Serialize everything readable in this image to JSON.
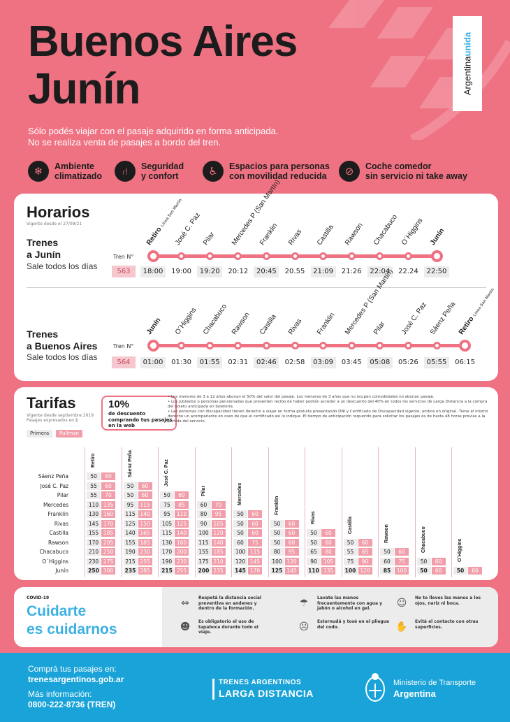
{
  "header": {
    "title_line1": "Buenos Aires",
    "title_line2": "Junín",
    "brand_part1": "Argentina",
    "brand_part2": "unida",
    "notice_line1": "Sólo podés viajar con el pasaje adquirido en forma anticipada.",
    "notice_line2": "No se realiza venta de pasajes a bordo del tren."
  },
  "features": [
    {
      "icon": "snowflake-icon",
      "label": "Ambiente\nclimatizado"
    },
    {
      "icon": "seat-icon",
      "label": "Seguridad\ny confort"
    },
    {
      "icon": "wheelchair-icon",
      "label": "Espacios para personas\ncon movilidad reducida"
    },
    {
      "icon": "no-food-icon",
      "label": "Coche comedor\nsin servicio ni take away"
    }
  ],
  "horarios": {
    "title": "Horarios",
    "vigencia": "Vigente desde el 27/09/21",
    "tren_label": "Tren N°",
    "route1": {
      "title_line1": "Trenes",
      "title_line2": "a Junín",
      "subtitle": "Sale todos los días",
      "train_number": "563",
      "stations": [
        "Retiro",
        "José C. Paz",
        "Pilar",
        "Mercedes P (San Martín)",
        "Franklin",
        "Rivas",
        "Castilla",
        "Rawson",
        "Chacabuco",
        "O´Higgins",
        "Junín"
      ],
      "station_sub": "Línea San Martín",
      "times": [
        "18:00",
        "19:00",
        "19:20",
        "20:12",
        "20:45",
        "20.55",
        "21:09",
        "21:26",
        "22:04",
        "22.24",
        "22:50"
      ]
    },
    "route2": {
      "title_line1": "Trenes",
      "title_line2": "a Buenos Aires",
      "subtitle": "Sale todos los días",
      "train_number": "564",
      "stations": [
        "Junín",
        "O´Higgins",
        "Chacabuco",
        "Rawson",
        "Castilla",
        "Rivas",
        "Franklin",
        "Mercedes P (San Martín)",
        "Pilar",
        "José C. Paz",
        "Sáenz Peña",
        "Retiro"
      ],
      "station_sub": "Línea San Martín",
      "times": [
        "01:00",
        "01:30",
        "01:55",
        "02:31",
        "02:46",
        "02:58",
        "03:09",
        "03:45",
        "05:08",
        "05:26",
        "05:55",
        "06:15"
      ]
    }
  },
  "tarifas": {
    "title": "Tarifas",
    "vigencia_line1": "Vigente desde septiembre 2019",
    "vigencia_line2": "Pasajes expresados en $",
    "legend_primera": "Primera",
    "legend_pullman": "Pullman",
    "promo_big": "10%",
    "promo_small": "de descuento comprando tus pasajes en la web",
    "notes": [
      "• Los menores de 3 a 12 años abonan el 50% del valor del pasaje. Los menores de 3 años que no ocupen comodidades no abonan pasaje.",
      "• Los jubilados o personas pensionadas que presenten recibo de haber podrán acceder a un descuento del 40% en todos los servicios de Larga Distancia a la compra del boleto anticipada en boletería.",
      "• Las personas con discapacidad tienen derecho a viajar en forma gratuita presentando DNI y Certificado de Discapacidad vigente, ambos en original. Tiene el mismo derecho un acompañante en caso de que el certificado así lo indique. El tiempo de anticipación requerido para solicitar los pasajes es de hasta 48 horas previas a la partida del servicio."
    ],
    "columns": [
      "Retiro",
      "Sáenz Peña",
      "José C. Paz",
      "Pilar",
      "Mercedes",
      "Franklin",
      "Rivas",
      "Castilla",
      "Rawson",
      "Chacabuco",
      "O´Higgins"
    ],
    "rows": [
      {
        "label": "Sáenz Peña",
        "cells": [
          [
            "50",
            "60"
          ]
        ]
      },
      {
        "label": "José C. Paz",
        "cells": [
          [
            "55",
            "60"
          ],
          [
            "50",
            "60"
          ]
        ]
      },
      {
        "label": "Pilar",
        "cells": [
          [
            "55",
            "70"
          ],
          [
            "50",
            "60"
          ],
          [
            "50",
            "60"
          ]
        ]
      },
      {
        "label": "Mercedes",
        "cells": [
          [
            "110",
            "135"
          ],
          [
            "95",
            "115"
          ],
          [
            "75",
            "85"
          ],
          [
            "60",
            "70"
          ]
        ]
      },
      {
        "label": "Franklin",
        "cells": [
          [
            "130",
            "160"
          ],
          [
            "115",
            "140"
          ],
          [
            "95",
            "110"
          ],
          [
            "80",
            "95"
          ],
          [
            "50",
            "60"
          ]
        ]
      },
      {
        "label": "Rivas",
        "cells": [
          [
            "145",
            "170"
          ],
          [
            "125",
            "150"
          ],
          [
            "105",
            "125"
          ],
          [
            "90",
            "105"
          ],
          [
            "50",
            "60"
          ],
          [
            "50",
            "60"
          ]
        ]
      },
      {
        "label": "Castilla",
        "cells": [
          [
            "155",
            "185"
          ],
          [
            "140",
            "165"
          ],
          [
            "115",
            "140"
          ],
          [
            "100",
            "120"
          ],
          [
            "50",
            "60"
          ],
          [
            "50",
            "60"
          ],
          [
            "50",
            "60"
          ]
        ]
      },
      {
        "label": "Rawson",
        "cells": [
          [
            "170",
            "205"
          ],
          [
            "155",
            "185"
          ],
          [
            "130",
            "160"
          ],
          [
            "115",
            "140"
          ],
          [
            "60",
            "75"
          ],
          [
            "50",
            "60"
          ],
          [
            "50",
            "60"
          ],
          [
            "50",
            "60"
          ]
        ]
      },
      {
        "label": "Chacabuco",
        "cells": [
          [
            "210",
            "250"
          ],
          [
            "190",
            "230"
          ],
          [
            "170",
            "200"
          ],
          [
            "155",
            "185"
          ],
          [
            "100",
            "115"
          ],
          [
            "80",
            "95"
          ],
          [
            "65",
            "80"
          ],
          [
            "55",
            "65"
          ],
          [
            "50",
            "60"
          ]
        ]
      },
      {
        "label": "O´Higgins",
        "cells": [
          [
            "230",
            "275"
          ],
          [
            "215",
            "255"
          ],
          [
            "190",
            "230"
          ],
          [
            "175",
            "210"
          ],
          [
            "120",
            "145"
          ],
          [
            "100",
            "120"
          ],
          [
            "90",
            "105"
          ],
          [
            "75",
            "90"
          ],
          [
            "60",
            "75"
          ],
          [
            "50",
            "60"
          ]
        ]
      },
      {
        "label": "Junín",
        "cells": [
          [
            "250",
            "300"
          ],
          [
            "235",
            "285"
          ],
          [
            "215",
            "255"
          ],
          [
            "200",
            "235"
          ],
          [
            "145",
            "170"
          ],
          [
            "125",
            "145"
          ],
          [
            "110",
            "135"
          ],
          [
            "100",
            "120"
          ],
          [
            "85",
            "100"
          ],
          [
            "50",
            "60"
          ],
          [
            "50",
            "60"
          ]
        ]
      }
    ]
  },
  "covid": {
    "tag": "COVID-19",
    "title_line1": "Cuidarte",
    "title_line2": "es cuidarnos",
    "tips": [
      {
        "icon": "distance-icon",
        "text": "Respetá la distancia social preventiva en andenes y dentro de la formación."
      },
      {
        "icon": "handwash-icon",
        "text": "Lavate las manos frecuentemente con agua y jabón o alcohol en gel."
      },
      {
        "icon": "face-icon",
        "text": "No te lleves las manos a los ojos, nariz ni boca."
      },
      {
        "icon": "mask-icon",
        "text": "Es obligatorio el uso de tapaboca durante todo el viaje."
      },
      {
        "icon": "sneeze-icon",
        "text": "Estornudá y tosé en el pliegue del codo."
      },
      {
        "icon": "surface-icon",
        "text": "Evitá el contacto con otras superficies."
      }
    ]
  },
  "footer": {
    "buy_label": "Comprá tus pasajes en:",
    "buy_url": "trenesargentinos.gob.ar",
    "info_label": "Más información:",
    "info_phone": "0800-222-8736 (TREN)",
    "brand_line1": "TRENES ARGENTINOS",
    "brand_line2": "LARGA DISTANCIA",
    "ministry_line1": "Ministerio de Transporte",
    "ministry_line2": "Argentina"
  },
  "colors": {
    "background": "#ef7283",
    "accent_blue": "#19a3d8",
    "pullman": "#f19eaa",
    "primera": "#ececec"
  }
}
